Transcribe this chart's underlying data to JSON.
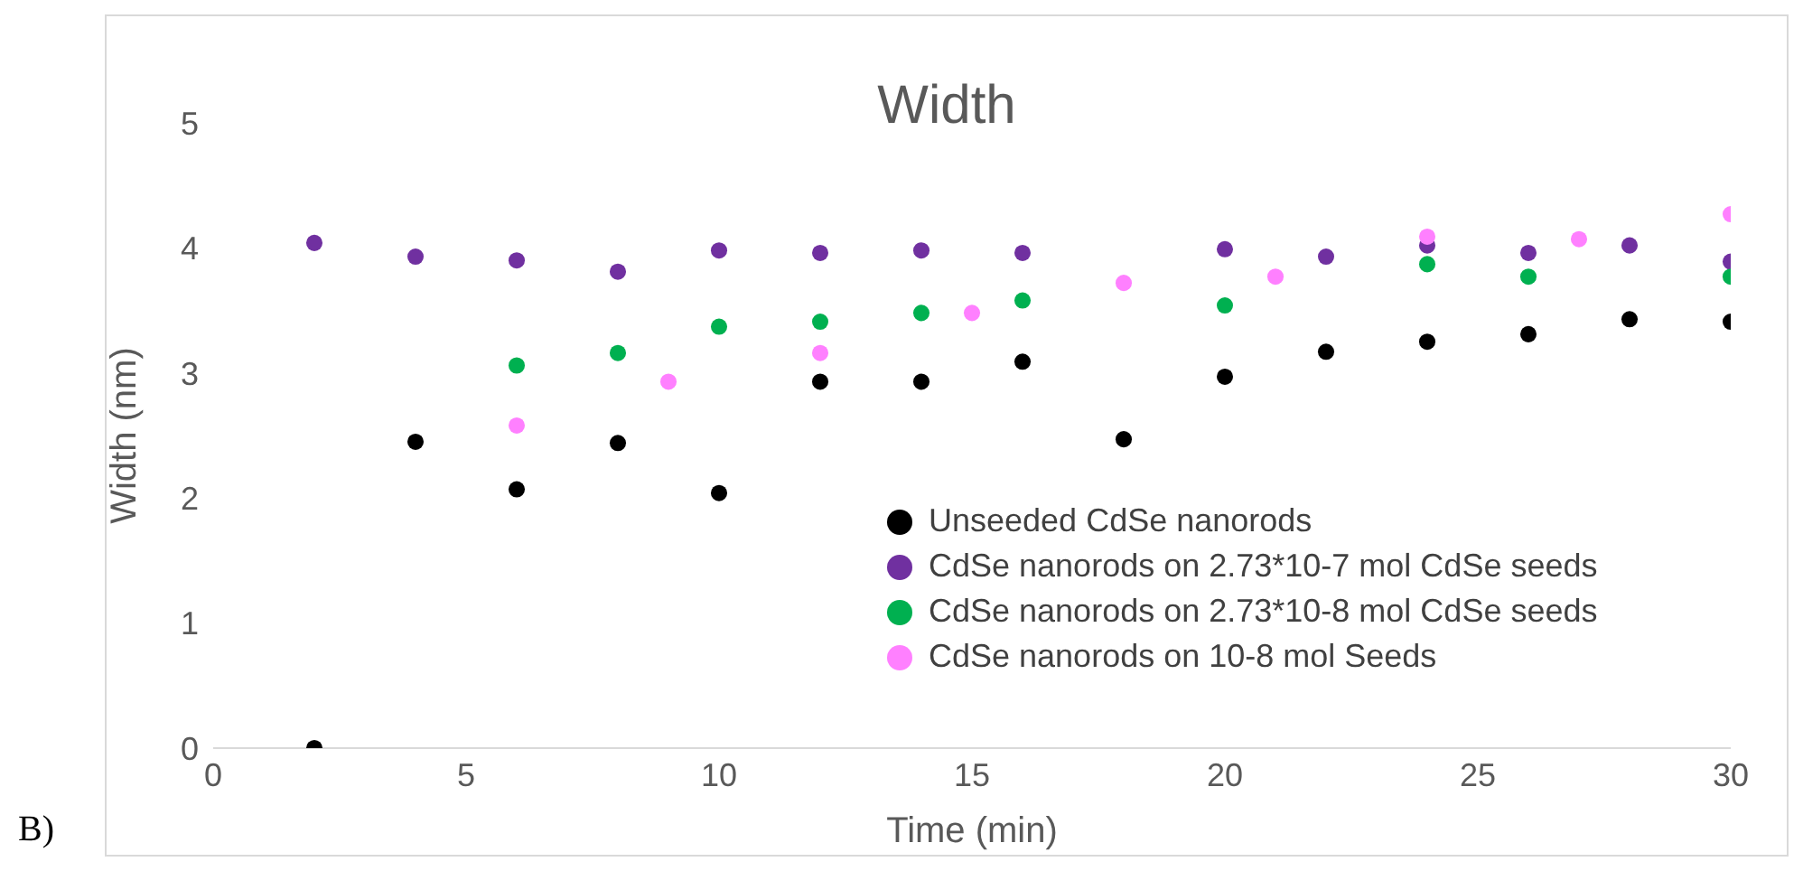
{
  "chart_data": {
    "type": "scatter",
    "title": "Width",
    "xlabel": "Time (min)",
    "ylabel": "Width (nm)",
    "xlim": [
      0,
      30
    ],
    "xticks": [
      0,
      5,
      10,
      15,
      20,
      25,
      30
    ],
    "ylim": [
      0,
      5
    ],
    "yticks": [
      0,
      1,
      2,
      3,
      4,
      5
    ],
    "grid": false,
    "legend": "bottom right",
    "marker": "circle",
    "annotations": [
      "B)"
    ],
    "series": [
      {
        "name": "Unseeded CdSe nanorods",
        "color": "#000000",
        "x": [
          2,
          4,
          6,
          8,
          10,
          12,
          14,
          16,
          18,
          20,
          22,
          24,
          26,
          28,
          30
        ],
        "values": [
          0,
          2.45,
          2.07,
          2.44,
          2.04,
          2.93,
          2.93,
          3.09,
          2.47,
          2.97,
          3.17,
          3.25,
          3.31,
          3.43,
          3.41
        ]
      },
      {
        "name": "CdSe nanorods on 2.73*10-7 mol CdSe seeds",
        "color": "#7030a0",
        "x": [
          2,
          4,
          6,
          8,
          10,
          12,
          14,
          16,
          20,
          22,
          24,
          26,
          28,
          30
        ],
        "values": [
          4.04,
          3.93,
          3.9,
          3.81,
          3.98,
          3.96,
          3.98,
          3.96,
          3.99,
          3.93,
          4.02,
          3.96,
          4.02,
          3.89
        ]
      },
      {
        "name": "CdSe nanorods on 2.73*10-8 mol CdSe seeds",
        "color": "#00b050",
        "x": [
          6,
          8,
          10,
          12,
          14,
          16,
          20,
          24,
          26,
          30
        ],
        "values": [
          3.06,
          3.16,
          3.37,
          3.41,
          3.48,
          3.58,
          3.54,
          3.87,
          3.77,
          3.77
        ]
      },
      {
        "name": "CdSe nanorods on 10-8 mol Seeds",
        "color": "#ff80ff",
        "x": [
          6,
          9,
          12,
          15,
          18,
          21,
          24,
          27,
          30
        ],
        "values": [
          2.58,
          2.93,
          3.16,
          3.48,
          3.72,
          3.77,
          4.09,
          4.07,
          4.27
        ]
      }
    ]
  }
}
